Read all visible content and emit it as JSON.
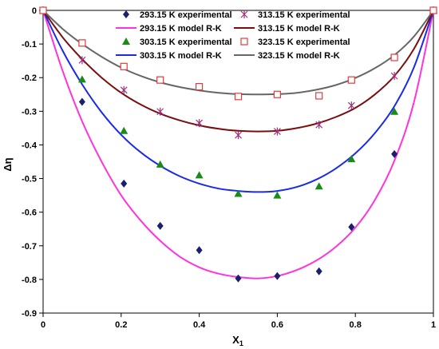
{
  "chart_data": {
    "type": "scatter",
    "xlabel": "X",
    "xlabel_sub": "1",
    "ylabel": "Δη",
    "xlim": [
      0,
      1
    ],
    "ylim": [
      -0.9,
      0
    ],
    "x_ticks": [
      "0",
      "0.2",
      "0.4",
      "0.6",
      "0.8",
      "1"
    ],
    "y_ticks": [
      "0",
      "-0.1",
      "-0.2",
      "-0.3",
      "-0.4",
      "-0.5",
      "-0.6",
      "-0.7",
      "-0.8",
      "-0.9"
    ],
    "grid": false,
    "legend_position": "top",
    "experimental_series": [
      {
        "name": "293.15 K experimental",
        "marker": "diamond",
        "color": "#1a1f6e",
        "points": [
          [
            0,
            0
          ],
          [
            0.1,
            -0.272
          ],
          [
            0.207,
            -0.515
          ],
          [
            0.3,
            -0.641
          ],
          [
            0.4,
            -0.713
          ],
          [
            0.5,
            -0.797
          ],
          [
            0.6,
            -0.79
          ],
          [
            0.707,
            -0.776
          ],
          [
            0.79,
            -0.644
          ],
          [
            0.9,
            -0.427
          ],
          [
            1,
            0
          ]
        ]
      },
      {
        "name": "303.15 K experimental",
        "marker": "triangle",
        "color": "#1a8a1a",
        "points": [
          [
            0,
            0
          ],
          [
            0.1,
            -0.205
          ],
          [
            0.207,
            -0.358
          ],
          [
            0.3,
            -0.458
          ],
          [
            0.4,
            -0.49
          ],
          [
            0.5,
            -0.545
          ],
          [
            0.6,
            -0.55
          ],
          [
            0.707,
            -0.523
          ],
          [
            0.79,
            -0.442
          ],
          [
            0.9,
            -0.301
          ],
          [
            1,
            0
          ]
        ]
      },
      {
        "name": "313.15 K experimental",
        "marker": "asterisk",
        "color": "#a0307a",
        "points": [
          [
            0,
            0
          ],
          [
            0.1,
            -0.148
          ],
          [
            0.207,
            -0.237
          ],
          [
            0.3,
            -0.301
          ],
          [
            0.4,
            -0.335
          ],
          [
            0.5,
            -0.371
          ],
          [
            0.6,
            -0.36
          ],
          [
            0.707,
            -0.34
          ],
          [
            0.79,
            -0.283
          ],
          [
            0.9,
            -0.195
          ],
          [
            1,
            0
          ]
        ]
      },
      {
        "name": "323.15 K experimental",
        "marker": "square",
        "color": "#e33b3b",
        "points": [
          [
            0,
            0
          ],
          [
            0.1,
            -0.097
          ],
          [
            0.207,
            -0.167
          ],
          [
            0.3,
            -0.207
          ],
          [
            0.4,
            -0.227
          ],
          [
            0.5,
            -0.256
          ],
          [
            0.6,
            -0.25
          ],
          [
            0.707,
            -0.254
          ],
          [
            0.79,
            -0.207
          ],
          [
            0.9,
            -0.14
          ],
          [
            1,
            0
          ]
        ]
      }
    ],
    "model_series": [
      {
        "name": "293.15 K model R-K",
        "color": "#ff33dd",
        "points": [
          [
            0,
            0
          ],
          [
            0.05,
            -0.18
          ],
          [
            0.1,
            -0.33
          ],
          [
            0.15,
            -0.45
          ],
          [
            0.2,
            -0.55
          ],
          [
            0.25,
            -0.625
          ],
          [
            0.3,
            -0.685
          ],
          [
            0.35,
            -0.732
          ],
          [
            0.4,
            -0.764
          ],
          [
            0.45,
            -0.783
          ],
          [
            0.5,
            -0.793
          ],
          [
            0.55,
            -0.797
          ],
          [
            0.6,
            -0.79
          ],
          [
            0.65,
            -0.772
          ],
          [
            0.7,
            -0.744
          ],
          [
            0.75,
            -0.703
          ],
          [
            0.8,
            -0.646
          ],
          [
            0.85,
            -0.564
          ],
          [
            0.9,
            -0.447
          ],
          [
            0.95,
            -0.274
          ],
          [
            1,
            0
          ]
        ]
      },
      {
        "name": "303.15 K model R-K",
        "color": "#1a2ae8",
        "points": [
          [
            0,
            0
          ],
          [
            0.05,
            -0.12
          ],
          [
            0.1,
            -0.22
          ],
          [
            0.15,
            -0.303
          ],
          [
            0.2,
            -0.37
          ],
          [
            0.25,
            -0.422
          ],
          [
            0.3,
            -0.462
          ],
          [
            0.35,
            -0.493
          ],
          [
            0.4,
            -0.515
          ],
          [
            0.45,
            -0.53
          ],
          [
            0.5,
            -0.537
          ],
          [
            0.55,
            -0.54
          ],
          [
            0.6,
            -0.537
          ],
          [
            0.65,
            -0.525
          ],
          [
            0.7,
            -0.503
          ],
          [
            0.75,
            -0.47
          ],
          [
            0.8,
            -0.425
          ],
          [
            0.85,
            -0.365
          ],
          [
            0.9,
            -0.285
          ],
          [
            0.95,
            -0.17
          ],
          [
            1,
            0
          ]
        ]
      },
      {
        "name": "313.15 K model R-K",
        "color": "#7a0d0d",
        "points": [
          [
            0,
            0
          ],
          [
            0.05,
            -0.08
          ],
          [
            0.1,
            -0.145
          ],
          [
            0.15,
            -0.2
          ],
          [
            0.2,
            -0.245
          ],
          [
            0.25,
            -0.28
          ],
          [
            0.3,
            -0.307
          ],
          [
            0.35,
            -0.327
          ],
          [
            0.4,
            -0.342
          ],
          [
            0.45,
            -0.352
          ],
          [
            0.5,
            -0.358
          ],
          [
            0.55,
            -0.36
          ],
          [
            0.6,
            -0.358
          ],
          [
            0.65,
            -0.35
          ],
          [
            0.7,
            -0.337
          ],
          [
            0.75,
            -0.317
          ],
          [
            0.8,
            -0.29
          ],
          [
            0.85,
            -0.25
          ],
          [
            0.9,
            -0.195
          ],
          [
            0.95,
            -0.115
          ],
          [
            1,
            0
          ]
        ]
      },
      {
        "name": "323.15 K model R-K",
        "color": "#666666",
        "points": [
          [
            0,
            0
          ],
          [
            0.05,
            -0.055
          ],
          [
            0.1,
            -0.1
          ],
          [
            0.15,
            -0.138
          ],
          [
            0.2,
            -0.17
          ],
          [
            0.25,
            -0.195
          ],
          [
            0.3,
            -0.214
          ],
          [
            0.35,
            -0.228
          ],
          [
            0.4,
            -0.238
          ],
          [
            0.45,
            -0.245
          ],
          [
            0.5,
            -0.249
          ],
          [
            0.55,
            -0.25
          ],
          [
            0.6,
            -0.249
          ],
          [
            0.65,
            -0.245
          ],
          [
            0.7,
            -0.236
          ],
          [
            0.75,
            -0.222
          ],
          [
            0.8,
            -0.201
          ],
          [
            0.85,
            -0.172
          ],
          [
            0.9,
            -0.133
          ],
          [
            0.95,
            -0.078
          ],
          [
            1,
            0
          ]
        ]
      }
    ],
    "legend": [
      {
        "label": "293.15 K experimental",
        "kind": "marker",
        "marker": "diamond",
        "color": "#1a1f6e"
      },
      {
        "label": "313.15 K experimental",
        "kind": "marker",
        "marker": "asterisk",
        "color": "#a0307a"
      },
      {
        "label": "293.15 K model R-K",
        "kind": "line",
        "color": "#ff33dd"
      },
      {
        "label": "313.15 K model R-K",
        "kind": "line",
        "color": "#7a0d0d"
      },
      {
        "label": "303.15 K experimental",
        "kind": "marker",
        "marker": "triangle",
        "color": "#1a8a1a"
      },
      {
        "label": "323.15 K experimental",
        "kind": "marker",
        "marker": "square",
        "color": "#e33b3b"
      },
      {
        "label": "303.15 K model R-K",
        "kind": "line",
        "color": "#1a2ae8"
      },
      {
        "label": "323.15 K model R-K",
        "kind": "line",
        "color": "#666666"
      }
    ]
  }
}
